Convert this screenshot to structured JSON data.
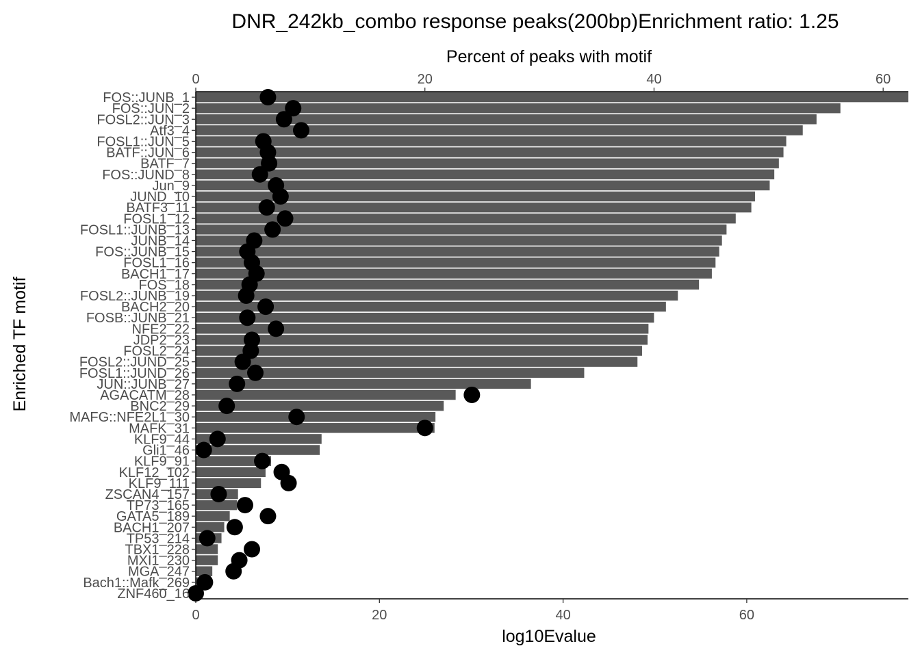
{
  "chart_data": {
    "type": "bar",
    "title": "DNR_242kb_combo response peaks(200bp)Enrichment ratio: 1.25",
    "xlabel_bottom": "log10Evalue",
    "xlabel_top": "Percent of peaks with motif",
    "ylabel": "Enriched TF motif",
    "xlim_bottom": [
      0,
      77.6
    ],
    "xticks_bottom": [
      0,
      20,
      40,
      60
    ],
    "xlim_top": [
      0,
      62.2
    ],
    "xticks_top": [
      0,
      20,
      40,
      60
    ],
    "grid": false,
    "bar_color": "#595959",
    "point_color": "#000000",
    "categories": [
      "FOS::JUNB_1",
      "FOS::JUN_2",
      "FOSL2::JUN_3",
      "Atf3_4",
      "FOSL1::JUN_5",
      "BATF::JUN_6",
      "BATF_7",
      "FOS::JUND_8",
      "Jun_9",
      "JUND_10",
      "BATF3_11",
      "FOSL1_12",
      "FOSL1::JUNB_13",
      "JUNB_14",
      "FOS::JUNB_15",
      "FOSL1_16",
      "BACH1_17",
      "FOS_18",
      "FOSL2::JUNB_19",
      "BACH2_20",
      "FOSB::JUNB_21",
      "NFE2_22",
      "JDP2_23",
      "FOSL2_24",
      "FOSL2::JUND_25",
      "FOSL1::JUND_26",
      "JUN::JUNB_27",
      "AGACATM_28",
      "BNC2_29",
      "MAFG::NFE2L1_30",
      "MAFK_31",
      "KLF9_44",
      "Gli1_46",
      "KLF9_91",
      "KLF12_102",
      "KLF9_111",
      "ZSCAN4_157",
      "TP73_165",
      "GATA5_189",
      "BACH1_207",
      "TP53_214",
      "TBX1_228",
      "MXI1_230",
      "MGA_247",
      "Bach1::Mafk_269",
      "ZNF460_16"
    ],
    "series": [
      {
        "name": "log10Evalue",
        "type": "bar",
        "axis": "bottom",
        "values": [
          77.6,
          70.2,
          67.6,
          66.1,
          64.3,
          64.0,
          63.5,
          63.0,
          62.5,
          60.9,
          60.5,
          58.8,
          57.8,
          57.3,
          57.0,
          56.6,
          56.2,
          54.8,
          52.5,
          51.2,
          49.9,
          49.3,
          49.2,
          48.6,
          48.1,
          42.3,
          36.5,
          28.3,
          27.0,
          26.1,
          26.0,
          13.7,
          13.5,
          8.2,
          7.6,
          7.1,
          4.6,
          4.5,
          3.7,
          3.1,
          2.8,
          2.4,
          2.4,
          1.8,
          1.0,
          0.4
        ]
      },
      {
        "name": "Percent of peaks with motif",
        "type": "scatter",
        "axis": "top",
        "values": [
          6.3,
          8.5,
          7.7,
          9.2,
          5.9,
          6.3,
          6.4,
          5.6,
          7.0,
          7.4,
          6.2,
          7.8,
          6.7,
          5.1,
          4.5,
          4.9,
          5.3,
          4.7,
          4.4,
          6.1,
          4.5,
          7.0,
          4.9,
          4.8,
          4.1,
          5.2,
          3.6,
          24.1,
          2.7,
          8.8,
          20.0,
          1.9,
          0.7,
          5.8,
          7.5,
          8.1,
          2.0,
          4.3,
          6.3,
          3.4,
          1.0,
          4.9,
          3.8,
          3.3,
          0.8,
          0.0
        ]
      }
    ]
  }
}
